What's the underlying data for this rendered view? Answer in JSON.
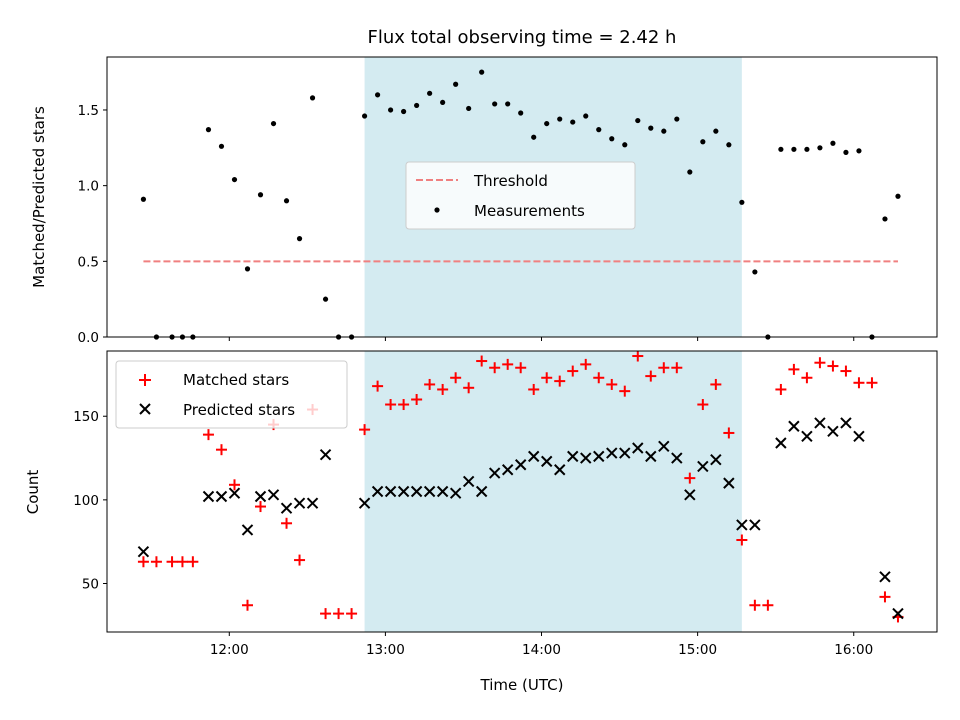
{
  "chart_data": [
    {
      "type": "scatter",
      "title": "Flux total observing time = 2.42 h",
      "xlabel": "",
      "ylabel": "Matched/Predicted stars",
      "ylim": [
        0,
        1.85
      ],
      "yticks": [
        0.0,
        0.5,
        1.0,
        1.5
      ],
      "ytick_labels": [
        "0.0",
        "0.5",
        "1.0",
        "1.5"
      ],
      "xlim": [
        "11:13",
        "16:32"
      ],
      "shaded_interval": [
        "12:52",
        "15:17"
      ],
      "shade_color": "#d4ebf1",
      "legend_position": "center",
      "threshold": {
        "name": "Threshold",
        "value": 0.5,
        "x_range": [
          "11:27",
          "16:17"
        ],
        "color": "#f08080",
        "style": "dashed"
      },
      "series": [
        {
          "name": "Measurements",
          "color": "#000000",
          "marker": "dot",
          "points": [
            [
              "11:27",
              0.91
            ],
            [
              "11:32",
              0.0
            ],
            [
              "11:38",
              0.0
            ],
            [
              "11:42",
              0.0
            ],
            [
              "11:46",
              0.0
            ],
            [
              "11:52",
              1.37
            ],
            [
              "11:57",
              1.26
            ],
            [
              "12:02",
              1.04
            ],
            [
              "12:07",
              0.45
            ],
            [
              "12:12",
              0.94
            ],
            [
              "12:17",
              1.41
            ],
            [
              "12:22",
              0.9
            ],
            [
              "12:27",
              0.65
            ],
            [
              "12:32",
              1.58
            ],
            [
              "12:37",
              0.25
            ],
            [
              "12:42",
              0.0
            ],
            [
              "12:47",
              0.0
            ],
            [
              "12:52",
              1.46
            ],
            [
              "12:57",
              1.6
            ],
            [
              "13:02",
              1.5
            ],
            [
              "13:07",
              1.49
            ],
            [
              "13:12",
              1.53
            ],
            [
              "13:17",
              1.61
            ],
            [
              "13:22",
              1.55
            ],
            [
              "13:27",
              1.67
            ],
            [
              "13:32",
              1.51
            ],
            [
              "13:37",
              1.75
            ],
            [
              "13:42",
              1.54
            ],
            [
              "13:47",
              1.54
            ],
            [
              "13:52",
              1.48
            ],
            [
              "13:57",
              1.32
            ],
            [
              "14:02",
              1.41
            ],
            [
              "14:07",
              1.44
            ],
            [
              "14:12",
              1.42
            ],
            [
              "14:17",
              1.46
            ],
            [
              "14:22",
              1.37
            ],
            [
              "14:27",
              1.31
            ],
            [
              "14:32",
              1.27
            ],
            [
              "14:37",
              1.43
            ],
            [
              "14:42",
              1.38
            ],
            [
              "14:47",
              1.36
            ],
            [
              "14:52",
              1.44
            ],
            [
              "14:57",
              1.09
            ],
            [
              "15:02",
              1.29
            ],
            [
              "15:07",
              1.36
            ],
            [
              "15:12",
              1.27
            ],
            [
              "15:17",
              0.89
            ],
            [
              "15:22",
              0.43
            ],
            [
              "15:27",
              0.0
            ],
            [
              "15:32",
              1.24
            ],
            [
              "15:37",
              1.24
            ],
            [
              "15:42",
              1.24
            ],
            [
              "15:47",
              1.25
            ],
            [
              "15:52",
              1.28
            ],
            [
              "15:57",
              1.22
            ],
            [
              "16:02",
              1.23
            ],
            [
              "16:07",
              0.0
            ],
            [
              "16:12",
              0.78
            ],
            [
              "16:17",
              0.93
            ]
          ]
        }
      ]
    },
    {
      "type": "scatter",
      "title": "",
      "xlabel": "Time (UTC)",
      "ylabel": "Count",
      "ylim": [
        21,
        189
      ],
      "yticks": [
        50,
        100,
        150
      ],
      "ytick_labels": [
        "50",
        "100",
        "150"
      ],
      "xlim": [
        "11:13",
        "16:32"
      ],
      "xticks": [
        "12:00",
        "13:00",
        "14:00",
        "15:00",
        "16:00"
      ],
      "xtick_labels": [
        "12:00",
        "13:00",
        "14:00",
        "15:00",
        "16:00"
      ],
      "shaded_interval": [
        "12:52",
        "15:17"
      ],
      "shade_color": "#d4ebf1",
      "legend_position": "upper left",
      "series": [
        {
          "name": "Matched stars",
          "color": "#ff0000",
          "marker": "plus",
          "points": [
            [
              "11:27",
              63
            ],
            [
              "11:32",
              63
            ],
            [
              "11:38",
              63
            ],
            [
              "11:42",
              63
            ],
            [
              "11:46",
              63
            ],
            [
              "11:52",
              139
            ],
            [
              "11:57",
              130
            ],
            [
              "12:02",
              109
            ],
            [
              "12:07",
              37
            ],
            [
              "12:12",
              96
            ],
            [
              "12:17",
              145
            ],
            [
              "12:22",
              86
            ],
            [
              "12:27",
              64
            ],
            [
              "12:32",
              154
            ],
            [
              "12:37",
              32
            ],
            [
              "12:42",
              32
            ],
            [
              "12:47",
              32
            ],
            [
              "12:52",
              142
            ],
            [
              "12:57",
              168
            ],
            [
              "13:02",
              157
            ],
            [
              "13:07",
              157
            ],
            [
              "13:12",
              160
            ],
            [
              "13:17",
              169
            ],
            [
              "13:22",
              166
            ],
            [
              "13:27",
              173
            ],
            [
              "13:32",
              167
            ],
            [
              "13:37",
              183
            ],
            [
              "13:42",
              179
            ],
            [
              "13:47",
              181
            ],
            [
              "13:52",
              179
            ],
            [
              "13:57",
              166
            ],
            [
              "14:02",
              173
            ],
            [
              "14:07",
              171
            ],
            [
              "14:12",
              177
            ],
            [
              "14:17",
              181
            ],
            [
              "14:22",
              173
            ],
            [
              "14:27",
              169
            ],
            [
              "14:32",
              165
            ],
            [
              "14:37",
              186
            ],
            [
              "14:42",
              174
            ],
            [
              "14:47",
              179
            ],
            [
              "14:52",
              179
            ],
            [
              "14:57",
              113
            ],
            [
              "15:02",
              157
            ],
            [
              "15:07",
              169
            ],
            [
              "15:12",
              140
            ],
            [
              "15:17",
              76
            ],
            [
              "15:22",
              37
            ],
            [
              "15:27",
              37
            ],
            [
              "15:32",
              166
            ],
            [
              "15:37",
              178
            ],
            [
              "15:42",
              173
            ],
            [
              "15:47",
              182
            ],
            [
              "15:52",
              180
            ],
            [
              "15:57",
              177
            ],
            [
              "16:02",
              170
            ],
            [
              "16:07",
              170
            ],
            [
              "16:12",
              42
            ],
            [
              "16:17",
              30
            ]
          ]
        },
        {
          "name": "Predicted stars",
          "color": "#000000",
          "marker": "x",
          "points": [
            [
              "11:27",
              69
            ],
            [
              "11:52",
              102
            ],
            [
              "11:57",
              102
            ],
            [
              "12:02",
              104
            ],
            [
              "12:07",
              82
            ],
            [
              "12:12",
              102
            ],
            [
              "12:17",
              103
            ],
            [
              "12:22",
              95
            ],
            [
              "12:27",
              98
            ],
            [
              "12:32",
              98
            ],
            [
              "12:37",
              127
            ],
            [
              "12:52",
              98
            ],
            [
              "12:57",
              105
            ],
            [
              "13:02",
              105
            ],
            [
              "13:07",
              105
            ],
            [
              "13:12",
              105
            ],
            [
              "13:17",
              105
            ],
            [
              "13:22",
              105
            ],
            [
              "13:27",
              104
            ],
            [
              "13:32",
              111
            ],
            [
              "13:37",
              105
            ],
            [
              "13:42",
              116
            ],
            [
              "13:47",
              118
            ],
            [
              "13:52",
              121
            ],
            [
              "13:57",
              126
            ],
            [
              "14:02",
              123
            ],
            [
              "14:07",
              118
            ],
            [
              "14:12",
              126
            ],
            [
              "14:17",
              125
            ],
            [
              "14:22",
              126
            ],
            [
              "14:27",
              128
            ],
            [
              "14:32",
              128
            ],
            [
              "14:37",
              131
            ],
            [
              "14:42",
              126
            ],
            [
              "14:47",
              132
            ],
            [
              "14:52",
              125
            ],
            [
              "14:57",
              103
            ],
            [
              "15:02",
              120
            ],
            [
              "15:07",
              124
            ],
            [
              "15:12",
              110
            ],
            [
              "15:17",
              85
            ],
            [
              "15:22",
              85
            ],
            [
              "15:32",
              134
            ],
            [
              "15:37",
              144
            ],
            [
              "15:42",
              138
            ],
            [
              "15:47",
              146
            ],
            [
              "15:52",
              141
            ],
            [
              "15:57",
              146
            ],
            [
              "16:02",
              138
            ],
            [
              "16:12",
              54
            ],
            [
              "16:17",
              32
            ]
          ]
        }
      ]
    }
  ]
}
